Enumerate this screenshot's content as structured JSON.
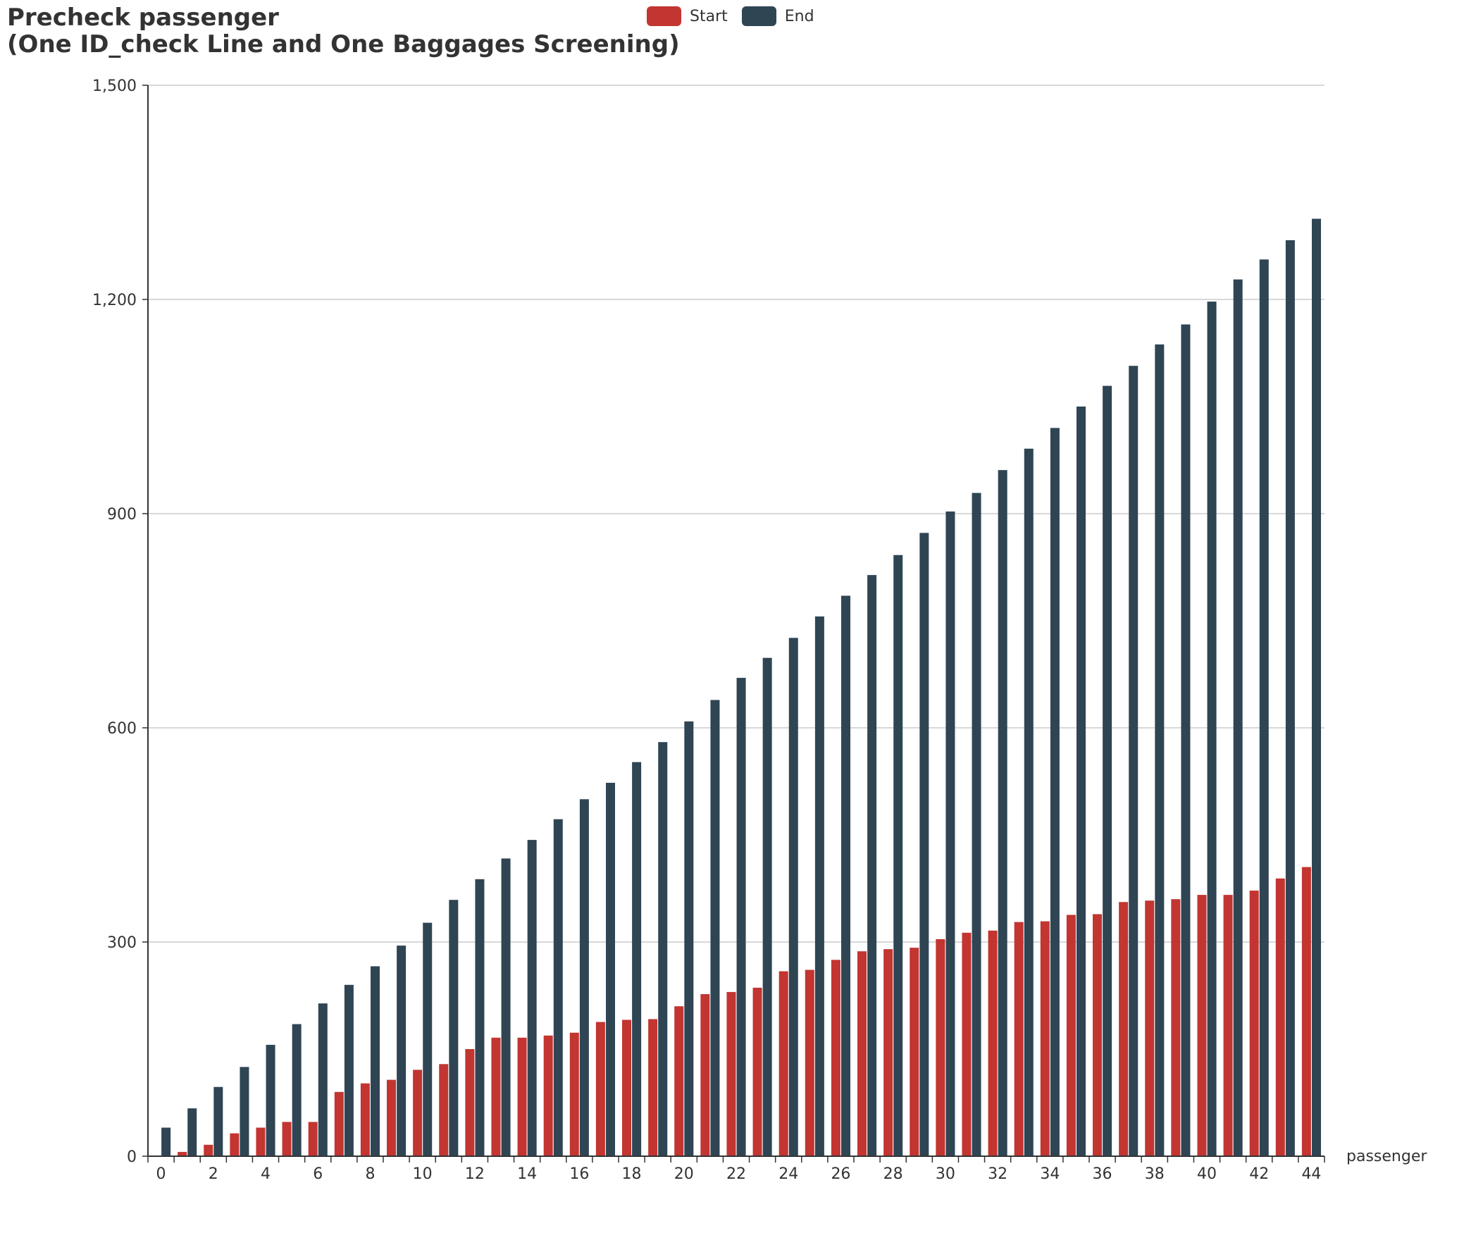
{
  "chart_data": {
    "type": "bar",
    "title": "Precheck passenger",
    "subtitle": "(One ID_check Line and One Baggages Screening)",
    "xlabel": "passenger",
    "ylabel": "",
    "ylim": [
      0,
      1500
    ],
    "yticks": [
      "0",
      "300",
      "600",
      "900",
      "1,200",
      "1,500"
    ],
    "ytick_values": [
      0,
      300,
      600,
      900,
      1200,
      1500
    ],
    "x_tick_step": 2,
    "grid": "horizontal",
    "legend_position": "top-center",
    "categories": [
      "0",
      "1",
      "2",
      "3",
      "4",
      "5",
      "6",
      "7",
      "8",
      "9",
      "10",
      "11",
      "12",
      "13",
      "14",
      "15",
      "16",
      "17",
      "18",
      "19",
      "20",
      "21",
      "22",
      "23",
      "24",
      "25",
      "26",
      "27",
      "28",
      "29",
      "30",
      "31",
      "32",
      "33",
      "34",
      "35",
      "36",
      "37",
      "38",
      "39",
      "40",
      "41",
      "42",
      "43",
      "44"
    ],
    "series": [
      {
        "name": "Start",
        "color": "#c23531",
        "values": [
          0,
          6,
          16,
          32,
          40,
          48,
          48,
          90,
          102,
          107,
          121,
          129,
          150,
          166,
          166,
          169,
          173,
          188,
          191,
          192,
          210,
          227,
          230,
          236,
          259,
          261,
          275,
          287,
          290,
          292,
          304,
          313,
          316,
          328,
          329,
          338,
          339,
          356,
          358,
          360,
          366,
          366,
          372,
          389,
          405
        ]
      },
      {
        "name": "End",
        "color": "#2f4554",
        "values": [
          40,
          67,
          97,
          125,
          156,
          185,
          214,
          240,
          266,
          295,
          327,
          359,
          388,
          417,
          443,
          472,
          500,
          523,
          552,
          580,
          609,
          639,
          670,
          698,
          726,
          756,
          785,
          814,
          842,
          873,
          903,
          929,
          961,
          991,
          1020,
          1050,
          1079,
          1107,
          1137,
          1165,
          1197,
          1228,
          1256,
          1283,
          1313
        ]
      }
    ]
  }
}
